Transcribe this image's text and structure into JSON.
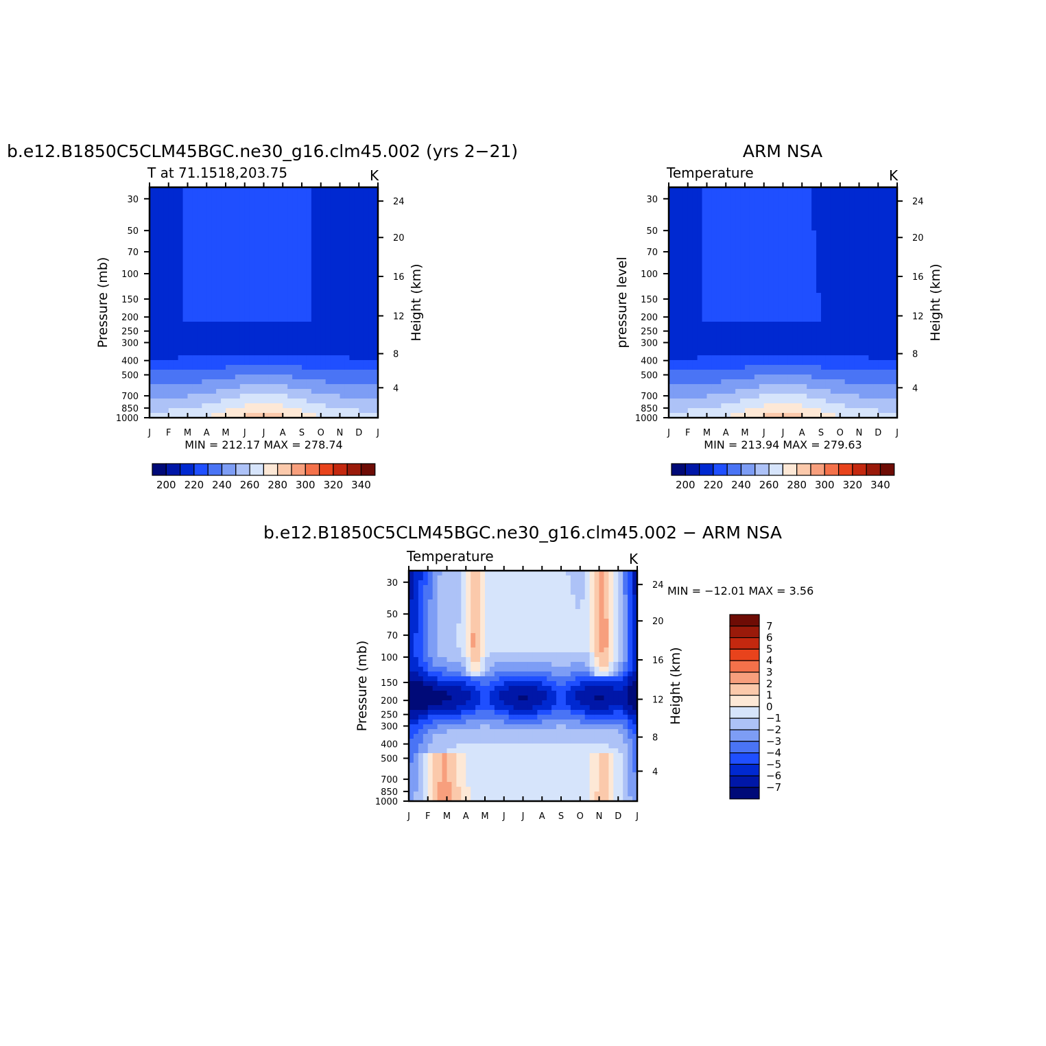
{
  "palette": [
    "#000a78",
    "#0017a8",
    "#0029d1",
    "#1f4fff",
    "#4a74f5",
    "#7d9df5",
    "#adc2f7",
    "#d6e4fb",
    "#fde8d6",
    "#fbc9ab",
    "#f79f7d",
    "#f4714a",
    "#e8431c",
    "#c4280f",
    "#9a1a0a",
    "#6e0c05"
  ],
  "months": [
    "J",
    "F",
    "M",
    "A",
    "M",
    "J",
    "J",
    "A",
    "S",
    "O",
    "N",
    "D",
    "J"
  ],
  "pressure_ticks": [
    "30",
    "50",
    "70",
    "100",
    "150",
    "200",
    "250",
    "300",
    "400",
    "500",
    "700",
    "850",
    "1000"
  ],
  "height_ticks": [
    "24",
    "20",
    "16",
    "12",
    "8",
    "4"
  ],
  "panels": [
    {
      "key": "model",
      "title": "b.e12.B1850C5CLM45BGC.ne30_g16.clm45.002 (yrs 2−21)",
      "subtitle": "T at 71.1518,203.75",
      "units": "K",
      "ylabel": "Pressure (mb)",
      "ylabel2": "Height (km)",
      "minmax": "MIN = 212.17 MAX = 278.74",
      "colorbar_labels": [
        "200",
        "220",
        "240",
        "260",
        "280",
        "300",
        "320",
        "340"
      ]
    },
    {
      "key": "obs",
      "title": "ARM NSA",
      "subtitle": "Temperature",
      "units": "K",
      "ylabel": "pressure level",
      "ylabel2": "Height (km)",
      "minmax": "MIN = 213.94 MAX = 279.63",
      "colorbar_labels": [
        "200",
        "220",
        "240",
        "260",
        "280",
        "300",
        "320",
        "340"
      ]
    },
    {
      "key": "diff",
      "title": "b.e12.B1850C5CLM45BGC.ne30_g16.clm45.002 − ARM NSA",
      "subtitle": "Temperature",
      "units": "K",
      "ylabel": "Pressure (mb)",
      "ylabel2": "Height (km)",
      "minmax": "MIN = −12.01 MAX =    3.56",
      "colorbar_labels": [
        "7",
        "6",
        "5",
        "4",
        "3",
        "2",
        "1",
        "0",
        "−1",
        "−2",
        "−3",
        "−4",
        "−5",
        "−6",
        "−7"
      ]
    }
  ],
  "chart_data": [
    {
      "type": "heatmap",
      "title": "b.e12.B1850C5CLM45BGC.ne30_g16.clm45.002 (yrs 2−21)",
      "subtitle": "T at 71.1518,203.75",
      "units": "K",
      "xlabel": "",
      "ylabel": "Pressure (mb)",
      "ylabel_right": "Height (km)",
      "x_categories": [
        "J",
        "F",
        "M",
        "A",
        "M",
        "J",
        "J",
        "A",
        "S",
        "O",
        "N",
        "D",
        "J"
      ],
      "y_ticks": [
        30,
        50,
        70,
        100,
        150,
        200,
        250,
        300,
        400,
        500,
        700,
        850,
        1000
      ],
      "y_log": true,
      "y_reversed": true,
      "y_right_ticks": [
        24,
        20,
        16,
        12,
        8,
        4
      ],
      "levels": [
        200,
        210,
        220,
        230,
        240,
        250,
        260,
        270,
        280,
        290,
        300,
        310,
        320,
        330,
        340
      ],
      "min": 212.17,
      "max": 278.74,
      "grid": false,
      "colorbar": "below"
    },
    {
      "type": "heatmap",
      "title": "ARM NSA",
      "subtitle": "Temperature",
      "units": "K",
      "xlabel": "",
      "ylabel": "pressure level",
      "ylabel_right": "Height (km)",
      "x_categories": [
        "J",
        "F",
        "M",
        "A",
        "M",
        "J",
        "J",
        "A",
        "S",
        "O",
        "N",
        "D",
        "J"
      ],
      "y_ticks": [
        30,
        50,
        70,
        100,
        150,
        200,
        250,
        300,
        400,
        500,
        700,
        850,
        1000
      ],
      "y_log": true,
      "y_reversed": true,
      "y_right_ticks": [
        24,
        20,
        16,
        12,
        8,
        4
      ],
      "levels": [
        200,
        210,
        220,
        230,
        240,
        250,
        260,
        270,
        280,
        290,
        300,
        310,
        320,
        330,
        340
      ],
      "min": 213.94,
      "max": 279.63,
      "grid": false,
      "colorbar": "below"
    },
    {
      "type": "heatmap",
      "title": "b.e12.B1850C5CLM45BGC.ne30_g16.clm45.002 − ARM NSA",
      "subtitle": "Temperature",
      "units": "K",
      "xlabel": "",
      "ylabel": "Pressure (mb)",
      "ylabel_right": "Height (km)",
      "x_categories": [
        "J",
        "F",
        "M",
        "A",
        "M",
        "J",
        "J",
        "A",
        "S",
        "O",
        "N",
        "D",
        "J"
      ],
      "y_ticks": [
        30,
        50,
        70,
        100,
        150,
        200,
        250,
        300,
        400,
        500,
        700,
        850,
        1000
      ],
      "y_log": true,
      "y_reversed": true,
      "y_right_ticks": [
        24,
        20,
        16,
        12,
        8,
        4
      ],
      "levels": [
        -7,
        -6,
        -5,
        -4,
        -3,
        -2,
        -1,
        0,
        1,
        2,
        3,
        4,
        5,
        6,
        7
      ],
      "min": -12.01,
      "max": 3.56,
      "grid": false,
      "colorbar": "right"
    }
  ]
}
